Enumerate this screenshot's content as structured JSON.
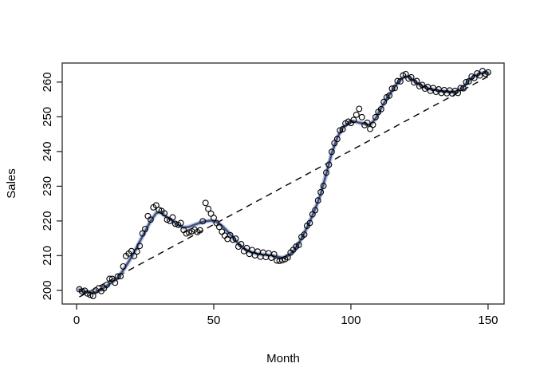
{
  "chart_data": {
    "type": "scatter",
    "title": "",
    "xlabel": "Month",
    "ylabel": "Sales",
    "x_ticks": [
      0,
      50,
      100,
      150
    ],
    "y_ticks": [
      200,
      210,
      220,
      230,
      240,
      250,
      260
    ],
    "xlim": [
      -5.24,
      155.84
    ],
    "ylim": [
      196.07,
      265.49
    ],
    "grid": false,
    "legend": "none",
    "colors": {
      "point_stroke": "#000000",
      "smooth_core": "#3a4a7e",
      "smooth_halo": "#93a0c7",
      "trend_line": "#000000",
      "box": "#2a2a2a"
    },
    "series": [
      {
        "name": "observed",
        "style": "open-circle-scatter",
        "points": [
          [
            1,
            200.3
          ],
          [
            2,
            199.7
          ],
          [
            3,
            199.9
          ],
          [
            4,
            199.1
          ],
          [
            5,
            198.7
          ],
          [
            6,
            198.4
          ],
          [
            7,
            200.0
          ],
          [
            8,
            200.6
          ],
          [
            9,
            199.8
          ],
          [
            10,
            200.6
          ],
          [
            11,
            201.6
          ],
          [
            12,
            203.3
          ],
          [
            13,
            203.3
          ],
          [
            14,
            202.2
          ],
          [
            15,
            204.0
          ],
          [
            16,
            204.1
          ],
          [
            17,
            206.9
          ],
          [
            18,
            209.9
          ],
          [
            19,
            210.6
          ],
          [
            20,
            211.3
          ],
          [
            21,
            209.9
          ],
          [
            22,
            211.2
          ],
          [
            23,
            212.8
          ],
          [
            24,
            216.4
          ],
          [
            25,
            217.7
          ],
          [
            26,
            221.4
          ],
          [
            27,
            220.4
          ],
          [
            28,
            223.9
          ],
          [
            29,
            224.5
          ],
          [
            30,
            223.2
          ],
          [
            31,
            222.9
          ],
          [
            32,
            222.2
          ],
          [
            33,
            220.4
          ],
          [
            34,
            220.0
          ],
          [
            35,
            221.0
          ],
          [
            36,
            219.2
          ],
          [
            37,
            218.9
          ],
          [
            38,
            219.4
          ],
          [
            39,
            217.4
          ],
          [
            40,
            216.4
          ],
          [
            41,
            216.7
          ],
          [
            42,
            217.0
          ],
          [
            43,
            217.5
          ],
          [
            44,
            216.8
          ],
          [
            45,
            217.3
          ],
          [
            46,
            219.9
          ],
          [
            47,
            225.2
          ],
          [
            48,
            223.5
          ],
          [
            49,
            222.1
          ],
          [
            50,
            220.9
          ],
          [
            51,
            219.4
          ],
          [
            52,
            218.3
          ],
          [
            53,
            216.9
          ],
          [
            54,
            215.8
          ],
          [
            55,
            214.8
          ],
          [
            56,
            215.9
          ],
          [
            57,
            214.6
          ],
          [
            58,
            214.9
          ],
          [
            59,
            212.6
          ],
          [
            60,
            213.3
          ],
          [
            61,
            211.3
          ],
          [
            62,
            212.2
          ],
          [
            63,
            210.5
          ],
          [
            64,
            211.6
          ],
          [
            65,
            210.1
          ],
          [
            66,
            211.2
          ],
          [
            67,
            209.7
          ],
          [
            68,
            210.9
          ],
          [
            69,
            209.6
          ],
          [
            70,
            210.7
          ],
          [
            71,
            209.4
          ],
          [
            72,
            210.4
          ],
          [
            73,
            208.6
          ],
          [
            74,
            208.5
          ],
          [
            75,
            208.7
          ],
          [
            76,
            209.0
          ],
          [
            77,
            209.5
          ],
          [
            78,
            210.9
          ],
          [
            79,
            211.7
          ],
          [
            80,
            212.6
          ],
          [
            81,
            213.1
          ],
          [
            82,
            215.4
          ],
          [
            83,
            216.1
          ],
          [
            84,
            218.6
          ],
          [
            85,
            219.4
          ],
          [
            86,
            221.9
          ],
          [
            87,
            223.1
          ],
          [
            88,
            225.9
          ],
          [
            89,
            228.3
          ],
          [
            90,
            230.1
          ],
          [
            91,
            233.9
          ],
          [
            92,
            236.2
          ],
          [
            93,
            239.9
          ],
          [
            94,
            242.4
          ],
          [
            95,
            243.6
          ],
          [
            96,
            246.1
          ],
          [
            97,
            246.4
          ],
          [
            98,
            248.1
          ],
          [
            99,
            248.6
          ],
          [
            100,
            248.2
          ],
          [
            101,
            249.1
          ],
          [
            102,
            250.6
          ],
          [
            103,
            252.3
          ],
          [
            104,
            249.9
          ],
          [
            105,
            247.6
          ],
          [
            106,
            248.3
          ],
          [
            107,
            246.5
          ],
          [
            108,
            247.7
          ],
          [
            109,
            249.9
          ],
          [
            110,
            251.4
          ],
          [
            111,
            252.2
          ],
          [
            112,
            254.3
          ],
          [
            113,
            255.6
          ],
          [
            114,
            256.1
          ],
          [
            115,
            258.1
          ],
          [
            116,
            258.3
          ],
          [
            117,
            260.3
          ],
          [
            118,
            260.2
          ],
          [
            119,
            261.9
          ],
          [
            120,
            262.3
          ],
          [
            121,
            261.0
          ],
          [
            122,
            261.4
          ],
          [
            123,
            259.9
          ],
          [
            124,
            260.3
          ],
          [
            125,
            258.8
          ],
          [
            126,
            259.2
          ],
          [
            127,
            258.1
          ],
          [
            128,
            258.6
          ],
          [
            129,
            257.5
          ],
          [
            130,
            258.3
          ],
          [
            131,
            257.2
          ],
          [
            132,
            257.9
          ],
          [
            133,
            256.9
          ],
          [
            134,
            257.7
          ],
          [
            135,
            256.8
          ],
          [
            136,
            257.6
          ],
          [
            137,
            256.7
          ],
          [
            138,
            257.5
          ],
          [
            139,
            256.9
          ],
          [
            140,
            258.3
          ],
          [
            141,
            258.2
          ],
          [
            142,
            260.0
          ],
          [
            143,
            260.2
          ],
          [
            144,
            261.6
          ],
          [
            145,
            261.2
          ],
          [
            146,
            262.5
          ],
          [
            147,
            261.9
          ],
          [
            148,
            263.2
          ],
          [
            149,
            262.4
          ],
          [
            150,
            262.8
          ]
        ]
      },
      {
        "name": "smooth-fit",
        "style": "thick-line-with-halo",
        "points": [
          [
            1,
            200.2
          ],
          [
            3,
            199.6
          ],
          [
            5,
            199.3
          ],
          [
            7,
            199.5
          ],
          [
            9,
            200.2
          ],
          [
            11,
            201.3
          ],
          [
            13,
            202.4
          ],
          [
            15,
            203.6
          ],
          [
            17,
            205.8
          ],
          [
            19,
            208.3
          ],
          [
            21,
            210.9
          ],
          [
            23,
            214.0
          ],
          [
            25,
            217.0
          ],
          [
            27,
            220.0
          ],
          [
            29,
            222.2
          ],
          [
            30,
            222.5
          ],
          [
            31,
            222.3
          ],
          [
            33,
            221.0
          ],
          [
            35,
            220.0
          ],
          [
            37,
            218.8
          ],
          [
            39,
            218.1
          ],
          [
            41,
            218.3
          ],
          [
            43,
            218.9
          ],
          [
            45,
            219.5
          ],
          [
            47,
            219.9
          ],
          [
            49,
            220.1
          ],
          [
            51,
            219.7
          ],
          [
            53,
            218.6
          ],
          [
            55,
            217.0
          ],
          [
            57,
            215.2
          ],
          [
            59,
            213.4
          ],
          [
            61,
            212.1
          ],
          [
            63,
            211.2
          ],
          [
            65,
            210.7
          ],
          [
            67,
            210.4
          ],
          [
            69,
            210.2
          ],
          [
            71,
            210.1
          ],
          [
            73,
            209.7
          ],
          [
            75,
            209.4
          ],
          [
            77,
            209.9
          ],
          [
            79,
            211.2
          ],
          [
            81,
            213.5
          ],
          [
            83,
            216.5
          ],
          [
            85,
            219.8
          ],
          [
            87,
            223.5
          ],
          [
            89,
            227.8
          ],
          [
            91,
            233.5
          ],
          [
            93,
            239.5
          ],
          [
            95,
            244.0
          ],
          [
            97,
            246.8
          ],
          [
            99,
            248.2
          ],
          [
            101,
            248.7
          ],
          [
            103,
            248.3
          ],
          [
            105,
            248.0
          ],
          [
            107,
            247.6
          ],
          [
            109,
            249.5
          ],
          [
            111,
            252.5
          ],
          [
            113,
            255.2
          ],
          [
            115,
            257.5
          ],
          [
            117,
            259.8
          ],
          [
            119,
            261.3
          ],
          [
            120,
            261.6
          ],
          [
            121,
            261.5
          ],
          [
            123,
            260.4
          ],
          [
            125,
            259.3
          ],
          [
            127,
            258.5
          ],
          [
            129,
            258.0
          ],
          [
            131,
            257.7
          ],
          [
            133,
            257.4
          ],
          [
            135,
            257.3
          ],
          [
            137,
            257.1
          ],
          [
            139,
            257.4
          ],
          [
            141,
            258.6
          ],
          [
            143,
            260.5
          ],
          [
            145,
            261.7
          ],
          [
            147,
            262.4
          ],
          [
            149,
            262.7
          ],
          [
            150,
            262.6
          ]
        ]
      },
      {
        "name": "linear-trend",
        "style": "dashed-line",
        "points": [
          [
            1,
            198.1
          ],
          [
            150,
            261.6
          ]
        ]
      }
    ]
  }
}
